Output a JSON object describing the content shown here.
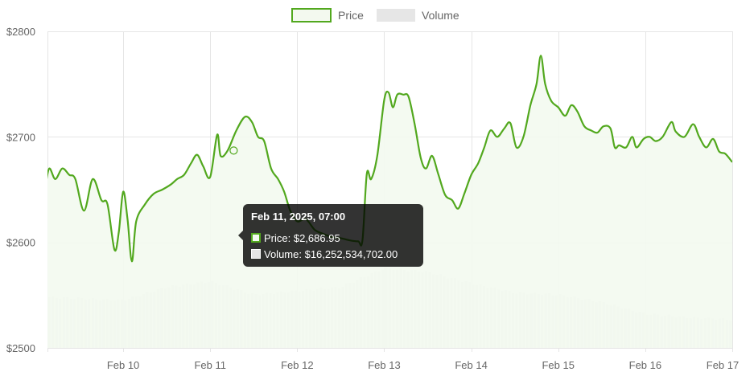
{
  "chart_data": {
    "type": "line",
    "legend_position": "top",
    "grid": true,
    "ylim": [
      2500,
      2800
    ],
    "y_ticks": [
      "$2800",
      "$2700",
      "$2600",
      "$2500"
    ],
    "x_ticks": [
      "Feb 10",
      "Feb 11",
      "Feb 12",
      "Feb 13",
      "Feb 14",
      "Feb 15",
      "Feb 16",
      "Feb 17"
    ],
    "series": [
      {
        "name": "Price",
        "color": "#52a81e",
        "fill": "#f3f9ef",
        "points": [
          [
            9.0,
            2636
          ],
          [
            9.05,
            2648
          ],
          [
            9.1,
            2652
          ],
          [
            9.15,
            2670
          ],
          [
            9.22,
            2660
          ],
          [
            9.3,
            2670
          ],
          [
            9.38,
            2664
          ],
          [
            9.45,
            2660
          ],
          [
            9.55,
            2630
          ],
          [
            9.65,
            2660
          ],
          [
            9.75,
            2640
          ],
          [
            9.82,
            2636
          ],
          [
            9.9,
            2593
          ],
          [
            9.95,
            2610
          ],
          [
            10.0,
            2648
          ],
          [
            10.05,
            2622
          ],
          [
            10.1,
            2582
          ],
          [
            10.15,
            2620
          ],
          [
            10.25,
            2636
          ],
          [
            10.35,
            2646
          ],
          [
            10.45,
            2650
          ],
          [
            10.55,
            2655
          ],
          [
            10.62,
            2660
          ],
          [
            10.7,
            2664
          ],
          [
            10.78,
            2675
          ],
          [
            10.85,
            2683
          ],
          [
            10.92,
            2672
          ],
          [
            11.0,
            2662
          ],
          [
            11.08,
            2702
          ],
          [
            11.12,
            2682
          ],
          [
            11.2,
            2687
          ],
          [
            11.3,
            2706
          ],
          [
            11.4,
            2719
          ],
          [
            11.48,
            2714
          ],
          [
            11.55,
            2700
          ],
          [
            11.62,
            2696
          ],
          [
            11.7,
            2670
          ],
          [
            11.78,
            2660
          ],
          [
            11.85,
            2648
          ],
          [
            11.92,
            2630
          ],
          [
            12.0,
            2620
          ],
          [
            12.1,
            2622
          ],
          [
            12.2,
            2612
          ],
          [
            12.3,
            2608
          ],
          [
            12.4,
            2605
          ],
          [
            12.5,
            2604
          ],
          [
            12.6,
            2602
          ],
          [
            12.7,
            2601
          ],
          [
            12.75,
            2602
          ],
          [
            12.8,
            2665
          ],
          [
            12.85,
            2660
          ],
          [
            12.92,
            2682
          ],
          [
            13.0,
            2735
          ],
          [
            13.05,
            2742
          ],
          [
            13.1,
            2728
          ],
          [
            13.15,
            2740
          ],
          [
            13.22,
            2740
          ],
          [
            13.28,
            2738
          ],
          [
            13.35,
            2712
          ],
          [
            13.42,
            2680
          ],
          [
            13.48,
            2670
          ],
          [
            13.55,
            2682
          ],
          [
            13.62,
            2665
          ],
          [
            13.7,
            2645
          ],
          [
            13.78,
            2640
          ],
          [
            13.85,
            2632
          ],
          [
            13.92,
            2646
          ],
          [
            14.0,
            2664
          ],
          [
            14.08,
            2675
          ],
          [
            14.15,
            2690
          ],
          [
            14.22,
            2706
          ],
          [
            14.3,
            2700
          ],
          [
            14.38,
            2708
          ],
          [
            14.45,
            2713
          ],
          [
            14.52,
            2690
          ],
          [
            14.6,
            2700
          ],
          [
            14.68,
            2730
          ],
          [
            14.75,
            2750
          ],
          [
            14.8,
            2777
          ],
          [
            14.85,
            2750
          ],
          [
            14.92,
            2734
          ],
          [
            15.0,
            2728
          ],
          [
            15.08,
            2720
          ],
          [
            15.15,
            2730
          ],
          [
            15.22,
            2724
          ],
          [
            15.3,
            2710
          ],
          [
            15.38,
            2706
          ],
          [
            15.45,
            2704
          ],
          [
            15.52,
            2710
          ],
          [
            15.6,
            2708
          ],
          [
            15.65,
            2690
          ],
          [
            15.7,
            2692
          ],
          [
            15.78,
            2690
          ],
          [
            15.85,
            2700
          ],
          [
            15.9,
            2690
          ],
          [
            15.98,
            2698
          ],
          [
            16.05,
            2700
          ],
          [
            16.12,
            2696
          ],
          [
            16.2,
            2700
          ],
          [
            16.3,
            2714
          ],
          [
            16.35,
            2705
          ],
          [
            16.45,
            2700
          ],
          [
            16.55,
            2712
          ],
          [
            16.62,
            2700
          ],
          [
            16.7,
            2690
          ],
          [
            16.78,
            2698
          ],
          [
            16.85,
            2686
          ],
          [
            16.92,
            2684
          ],
          [
            17.0,
            2676
          ]
        ]
      },
      {
        "name": "Volume",
        "color": "#e6e6e6",
        "note_axis": "volume shown as bars on a secondary scale"
      }
    ],
    "volume_points": [
      [
        9.0,
        27
      ],
      [
        9.5,
        26
      ],
      [
        10.0,
        25
      ],
      [
        10.5,
        32
      ],
      [
        11.0,
        35
      ],
      [
        11.5,
        28
      ],
      [
        12.0,
        30
      ],
      [
        12.5,
        32
      ],
      [
        13.0,
        42
      ],
      [
        13.5,
        40
      ],
      [
        14.0,
        34
      ],
      [
        14.5,
        29
      ],
      [
        15.0,
        28
      ],
      [
        15.5,
        24
      ],
      [
        16.0,
        18
      ],
      [
        16.5,
        16
      ],
      [
        17.0,
        15
      ]
    ],
    "volume_max": 100,
    "tooltip": {
      "title": "Feb 11, 2025, 07:00",
      "price_label": "Price: $2,686.95",
      "volume_label": "Volume: $16,252,534,702.00",
      "point_x": 11.27,
      "point_y": 2687
    },
    "xlim": [
      9.13,
      17.0
    ]
  }
}
